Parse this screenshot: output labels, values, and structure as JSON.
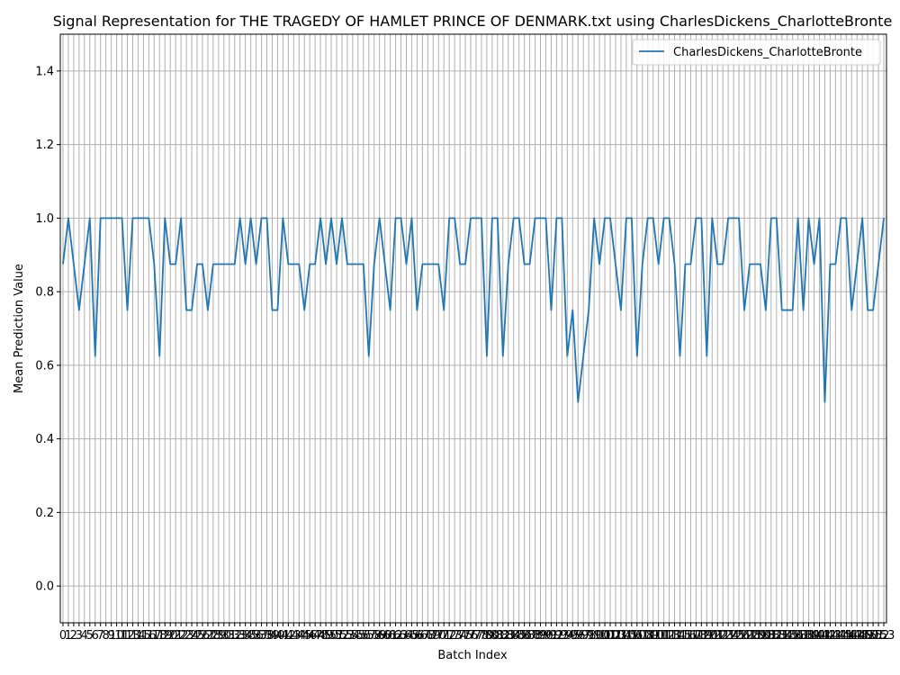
{
  "chart_data": {
    "type": "line",
    "title": "Signal Representation for THE TRAGEDY OF HAMLET PRINCE OF DENMARK.txt using CharlesDickens_CharlotteBronte",
    "xlabel": "Batch Index",
    "ylabel": "Mean Prediction Value",
    "xlim": [
      -0.5,
      153.5
    ],
    "ylim": [
      -0.1,
      1.5
    ],
    "yticks": [
      0.0,
      0.2,
      0.4,
      0.6,
      0.8,
      1.0,
      1.2,
      1.4
    ],
    "ytick_labels": [
      "0.0",
      "0.2",
      "0.4",
      "0.6",
      "0.8",
      "1.0",
      "1.2",
      "1.4"
    ],
    "grid": true,
    "legend_position": "top-right",
    "series": [
      {
        "name": "CharlesDickens_CharlotteBronte",
        "color": "#1f77b4",
        "x": [
          0,
          1,
          2,
          3,
          4,
          5,
          6,
          7,
          8,
          9,
          10,
          11,
          12,
          13,
          14,
          15,
          16,
          17,
          18,
          19,
          20,
          21,
          22,
          23,
          24,
          25,
          26,
          27,
          28,
          29,
          30,
          31,
          32,
          33,
          34,
          35,
          36,
          37,
          38,
          39,
          40,
          41,
          42,
          43,
          44,
          45,
          46,
          47,
          48,
          49,
          50,
          51,
          52,
          53,
          54,
          55,
          56,
          57,
          58,
          59,
          60,
          61,
          62,
          63,
          64,
          65,
          66,
          67,
          68,
          69,
          70,
          71,
          72,
          73,
          74,
          75,
          76,
          77,
          78,
          79,
          80,
          81,
          82,
          83,
          84,
          85,
          86,
          87,
          88,
          89,
          90,
          91,
          92,
          93,
          94,
          95,
          96,
          97,
          98,
          99,
          100,
          101,
          102,
          103,
          104,
          105,
          106,
          107,
          108,
          109,
          110,
          111,
          112,
          113,
          114,
          115,
          116,
          117,
          118,
          119,
          120,
          121,
          122,
          123,
          124,
          125,
          126,
          127,
          128,
          129,
          130,
          131,
          132,
          133,
          134,
          135,
          136,
          137,
          138,
          139,
          140,
          141,
          142,
          143,
          144,
          145,
          146,
          147,
          148,
          149,
          150,
          151,
          152,
          153
        ],
        "values": [
          0.875,
          1.0,
          0.875,
          0.75,
          0.875,
          1.0,
          0.625,
          1.0,
          1.0,
          1.0,
          1.0,
          1.0,
          0.75,
          1.0,
          1.0,
          1.0,
          1.0,
          0.875,
          0.625,
          1.0,
          0.875,
          0.875,
          1.0,
          0.75,
          0.75,
          0.875,
          0.875,
          0.75,
          0.875,
          0.875,
          0.875,
          0.875,
          0.875,
          1.0,
          0.875,
          1.0,
          0.875,
          1.0,
          1.0,
          0.75,
          0.75,
          1.0,
          0.875,
          0.875,
          0.875,
          0.75,
          0.875,
          0.875,
          1.0,
          0.875,
          1.0,
          0.875,
          1.0,
          0.875,
          0.875,
          0.875,
          0.875,
          0.625,
          0.875,
          1.0,
          0.875,
          0.75,
          1.0,
          1.0,
          0.875,
          1.0,
          0.75,
          0.875,
          0.875,
          0.875,
          0.875,
          0.75,
          1.0,
          1.0,
          0.875,
          0.875,
          1.0,
          1.0,
          1.0,
          0.625,
          1.0,
          1.0,
          0.625,
          0.875,
          1.0,
          1.0,
          0.875,
          0.875,
          1.0,
          1.0,
          1.0,
          0.75,
          1.0,
          1.0,
          0.625,
          0.75,
          0.5,
          0.625,
          0.75,
          1.0,
          0.875,
          1.0,
          1.0,
          0.875,
          0.75,
          1.0,
          1.0,
          0.625,
          0.875,
          1.0,
          1.0,
          0.875,
          1.0,
          1.0,
          0.875,
          0.625,
          0.875,
          0.875,
          1.0,
          1.0,
          0.625,
          1.0,
          0.875,
          0.875,
          1.0,
          1.0,
          1.0,
          0.75,
          0.875,
          0.875,
          0.875,
          0.75,
          1.0,
          1.0,
          0.75,
          0.75,
          0.75,
          1.0,
          0.75,
          1.0,
          0.875,
          1.0,
          0.5,
          0.875,
          0.875,
          1.0,
          1.0,
          0.75,
          0.875,
          1.0,
          0.75,
          0.75,
          0.875,
          1.0
        ]
      }
    ]
  }
}
